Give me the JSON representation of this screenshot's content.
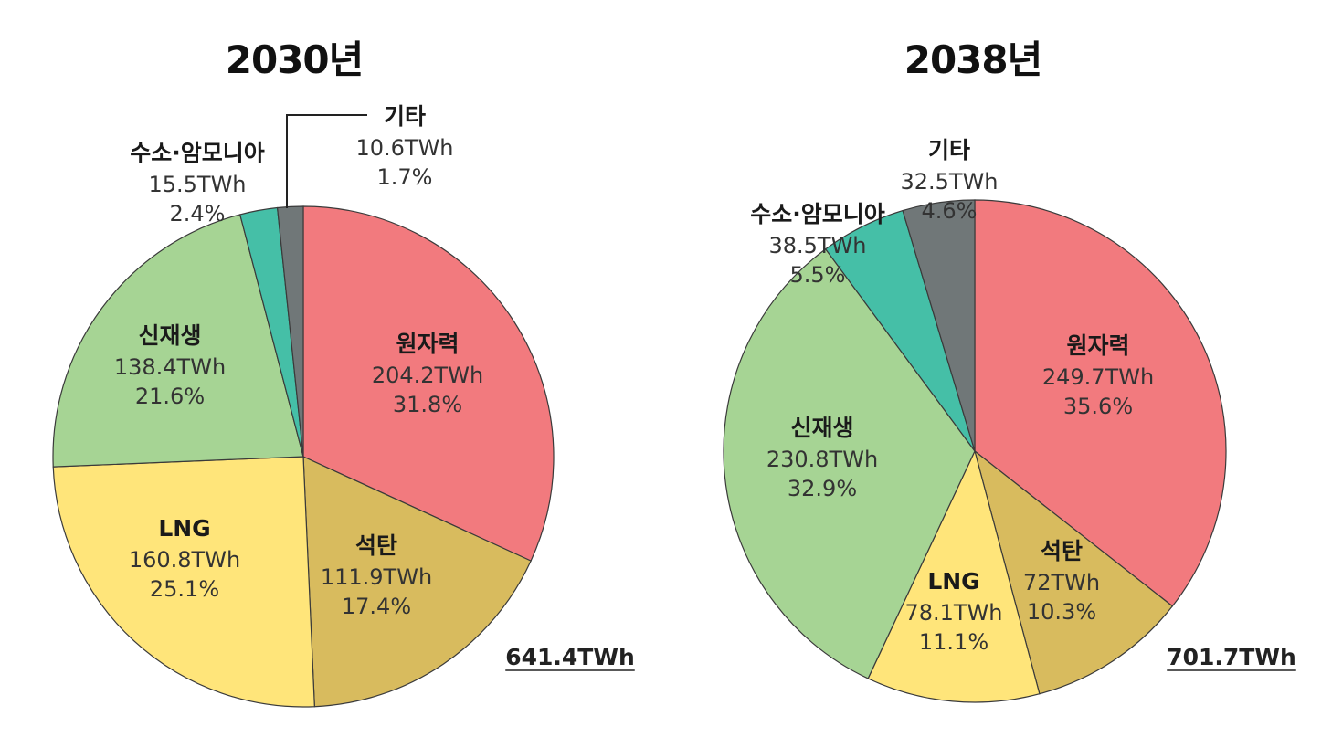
{
  "colors": {
    "원자력": "#F27A7E",
    "석탄": "#D8BB5E",
    "LNG": "#FFE57A",
    "신재생": "#A6D494",
    "수소·암모니아": "#45BFA7",
    "기타": "#707778",
    "stroke": "#3a3a3a"
  },
  "chart_data": [
    {
      "type": "pie",
      "title": "2030년",
      "total_label": "641.4TWh",
      "slices": [
        {
          "name": "원자력",
          "value": 204.2,
          "value_label": "204.2TWh",
          "percent": 31.8,
          "percent_label": "31.8%"
        },
        {
          "name": "석탄",
          "value": 111.9,
          "value_label": "111.9TWh",
          "percent": 17.4,
          "percent_label": "17.4%"
        },
        {
          "name": "LNG",
          "value": 160.8,
          "value_label": "160.8TWh",
          "percent": 25.1,
          "percent_label": "25.1%"
        },
        {
          "name": "신재생",
          "value": 138.4,
          "value_label": "138.4TWh",
          "percent": 21.6,
          "percent_label": "21.6%"
        },
        {
          "name": "수소·암모니아",
          "value": 15.5,
          "value_label": "15.5TWh",
          "percent": 2.4,
          "percent_label": "2.4%"
        },
        {
          "name": "기타",
          "value": 10.6,
          "value_label": "10.6TWh",
          "percent": 1.7,
          "percent_label": "1.7%"
        }
      ]
    },
    {
      "type": "pie",
      "title": "2038년",
      "total_label": "701.7TWh",
      "slices": [
        {
          "name": "원자력",
          "value": 249.7,
          "value_label": "249.7TWh",
          "percent": 35.6,
          "percent_label": "35.6%"
        },
        {
          "name": "석탄",
          "value": 72,
          "value_label": "72TWh",
          "percent": 10.3,
          "percent_label": "10.3%"
        },
        {
          "name": "LNG",
          "value": 78.1,
          "value_label": "78.1TWh",
          "percent": 11.1,
          "percent_label": "11.1%"
        },
        {
          "name": "신재생",
          "value": 230.8,
          "value_label": "230.8TWh",
          "percent": 32.9,
          "percent_label": "32.9%"
        },
        {
          "name": "수소·암모니아",
          "value": 38.5,
          "value_label": "38.5TWh",
          "percent": 5.5,
          "percent_label": "5.5%"
        },
        {
          "name": "기타",
          "value": 32.5,
          "value_label": "32.5TWh",
          "percent": 4.6,
          "percent_label": "4.6%"
        }
      ]
    }
  ]
}
